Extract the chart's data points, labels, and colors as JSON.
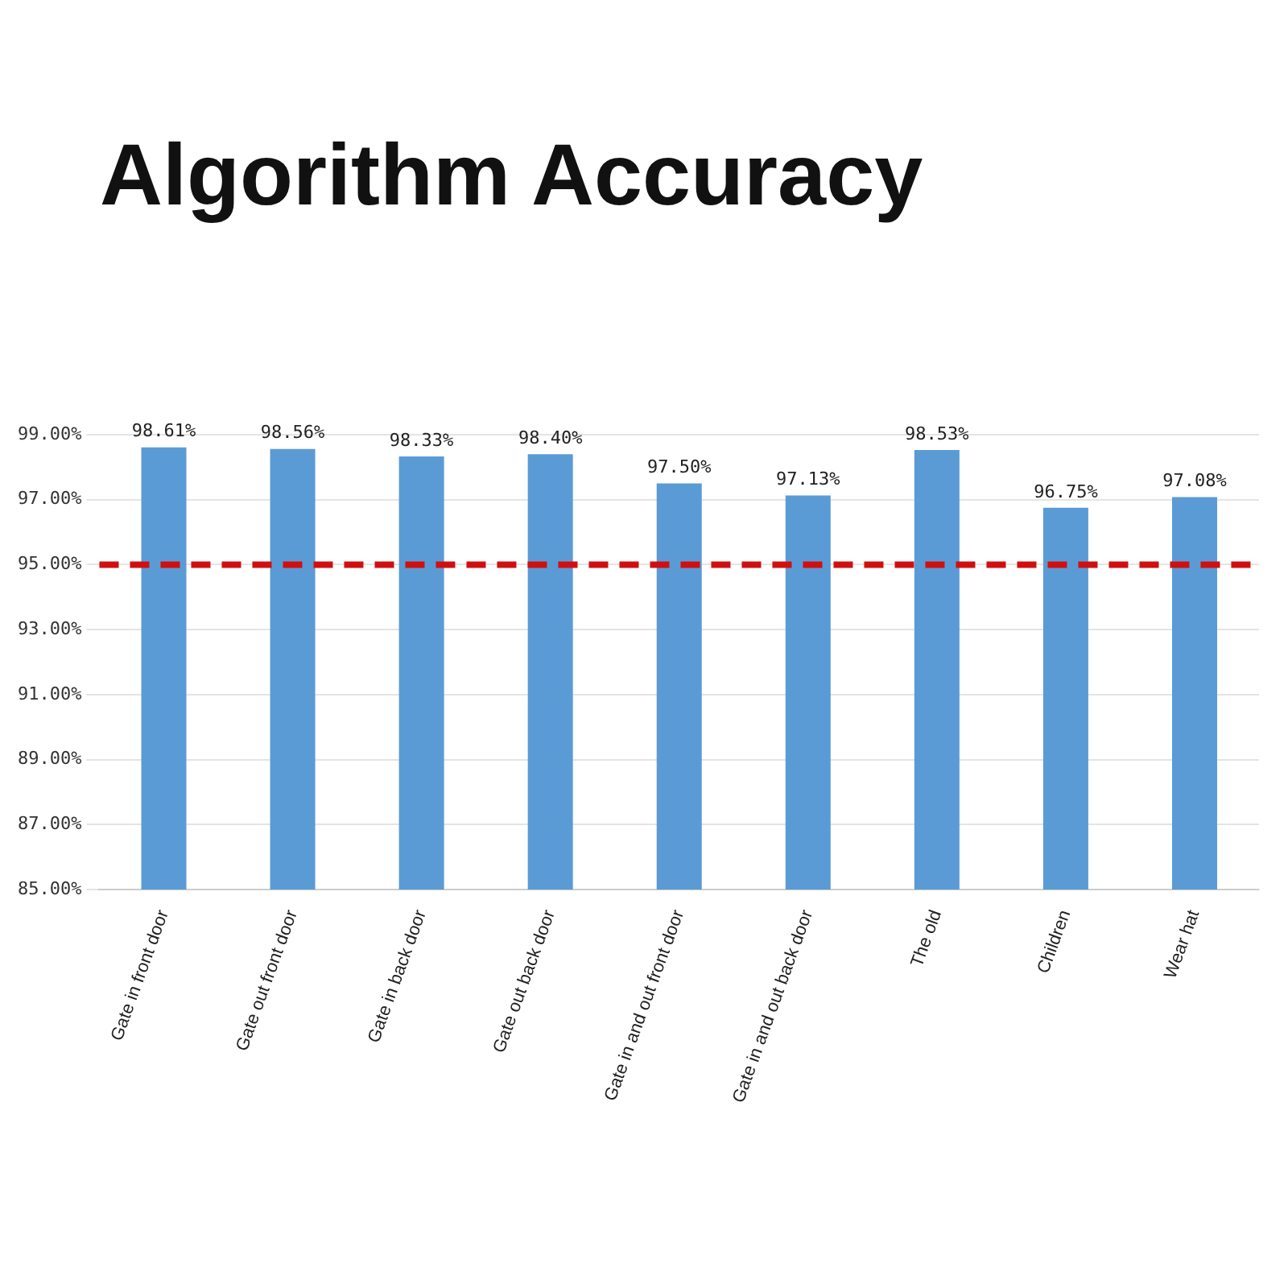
{
  "chart_data": {
    "type": "bar",
    "title": "Algorithm Accuracy",
    "categories": [
      "Gate in front door",
      "Gate out front door",
      "Gate in back door",
      "Gate out back door",
      "Gate in and out front door",
      "Gate in and out back door",
      "The old",
      "Children",
      "Wear hat"
    ],
    "values": [
      98.61,
      98.56,
      98.33,
      98.4,
      97.5,
      97.13,
      98.53,
      96.75,
      97.08
    ],
    "value_labels": [
      "98.61%",
      "98.56%",
      "98.33%",
      "98.40%",
      "97.50%",
      "97.13%",
      "98.53%",
      "96.75%",
      "97.08%"
    ],
    "color": "#5b9bd5",
    "ylim": [
      85,
      99
    ],
    "yticks": [
      {
        "value": 85,
        "label": "85.00%"
      },
      {
        "value": 87,
        "label": "87.00%"
      },
      {
        "value": 89,
        "label": "89.00%"
      },
      {
        "value": 91,
        "label": "91.00%"
      },
      {
        "value": 93,
        "label": "93.00%"
      },
      {
        "value": 95,
        "label": "95.00%"
      },
      {
        "value": 97,
        "label": "97.00%"
      },
      {
        "value": 99,
        "label": "99.00%"
      }
    ],
    "ref_lines": [
      {
        "axis": "y",
        "value": 95,
        "color": "#d01010",
        "line_style": "dashed"
      }
    ],
    "grid": "y",
    "legend": false
  }
}
